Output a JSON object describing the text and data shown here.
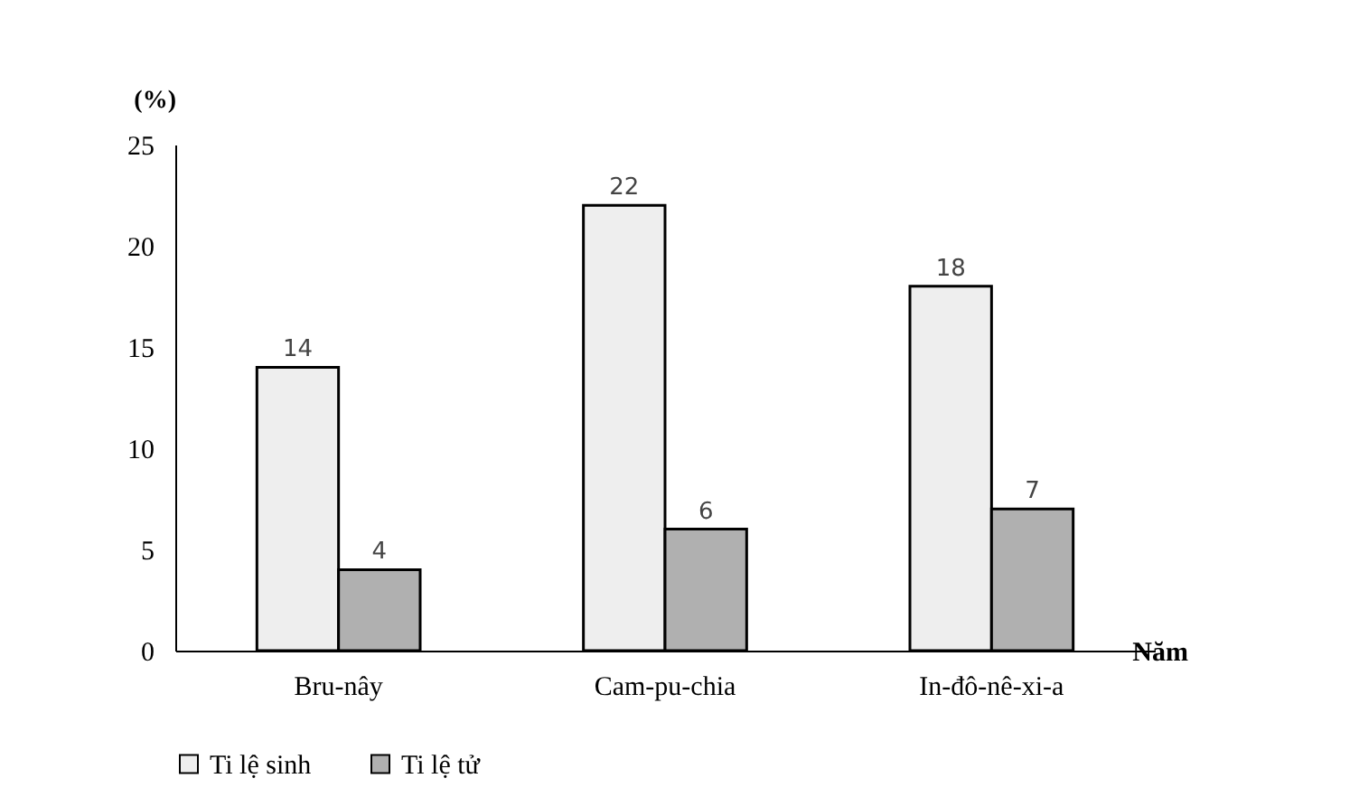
{
  "chart_data": {
    "type": "bar",
    "ylabel": "(%)",
    "xlabel": "Năm",
    "categories": [
      "Bru-nây",
      "Cam-pu-chia",
      "In-đô-nê-xi-a"
    ],
    "series": [
      {
        "name": "Ti lệ sinh",
        "color": "#eeeeee",
        "values": [
          14,
          22,
          18
        ]
      },
      {
        "name": "Ti lệ tử",
        "color": "#b0b0b0",
        "values": [
          4,
          6,
          7
        ]
      }
    ],
    "ylim": [
      0,
      25
    ],
    "yticks": [
      0,
      5,
      10,
      15,
      20,
      25
    ],
    "grid": false,
    "legend": "bottom",
    "data_labels": true
  }
}
